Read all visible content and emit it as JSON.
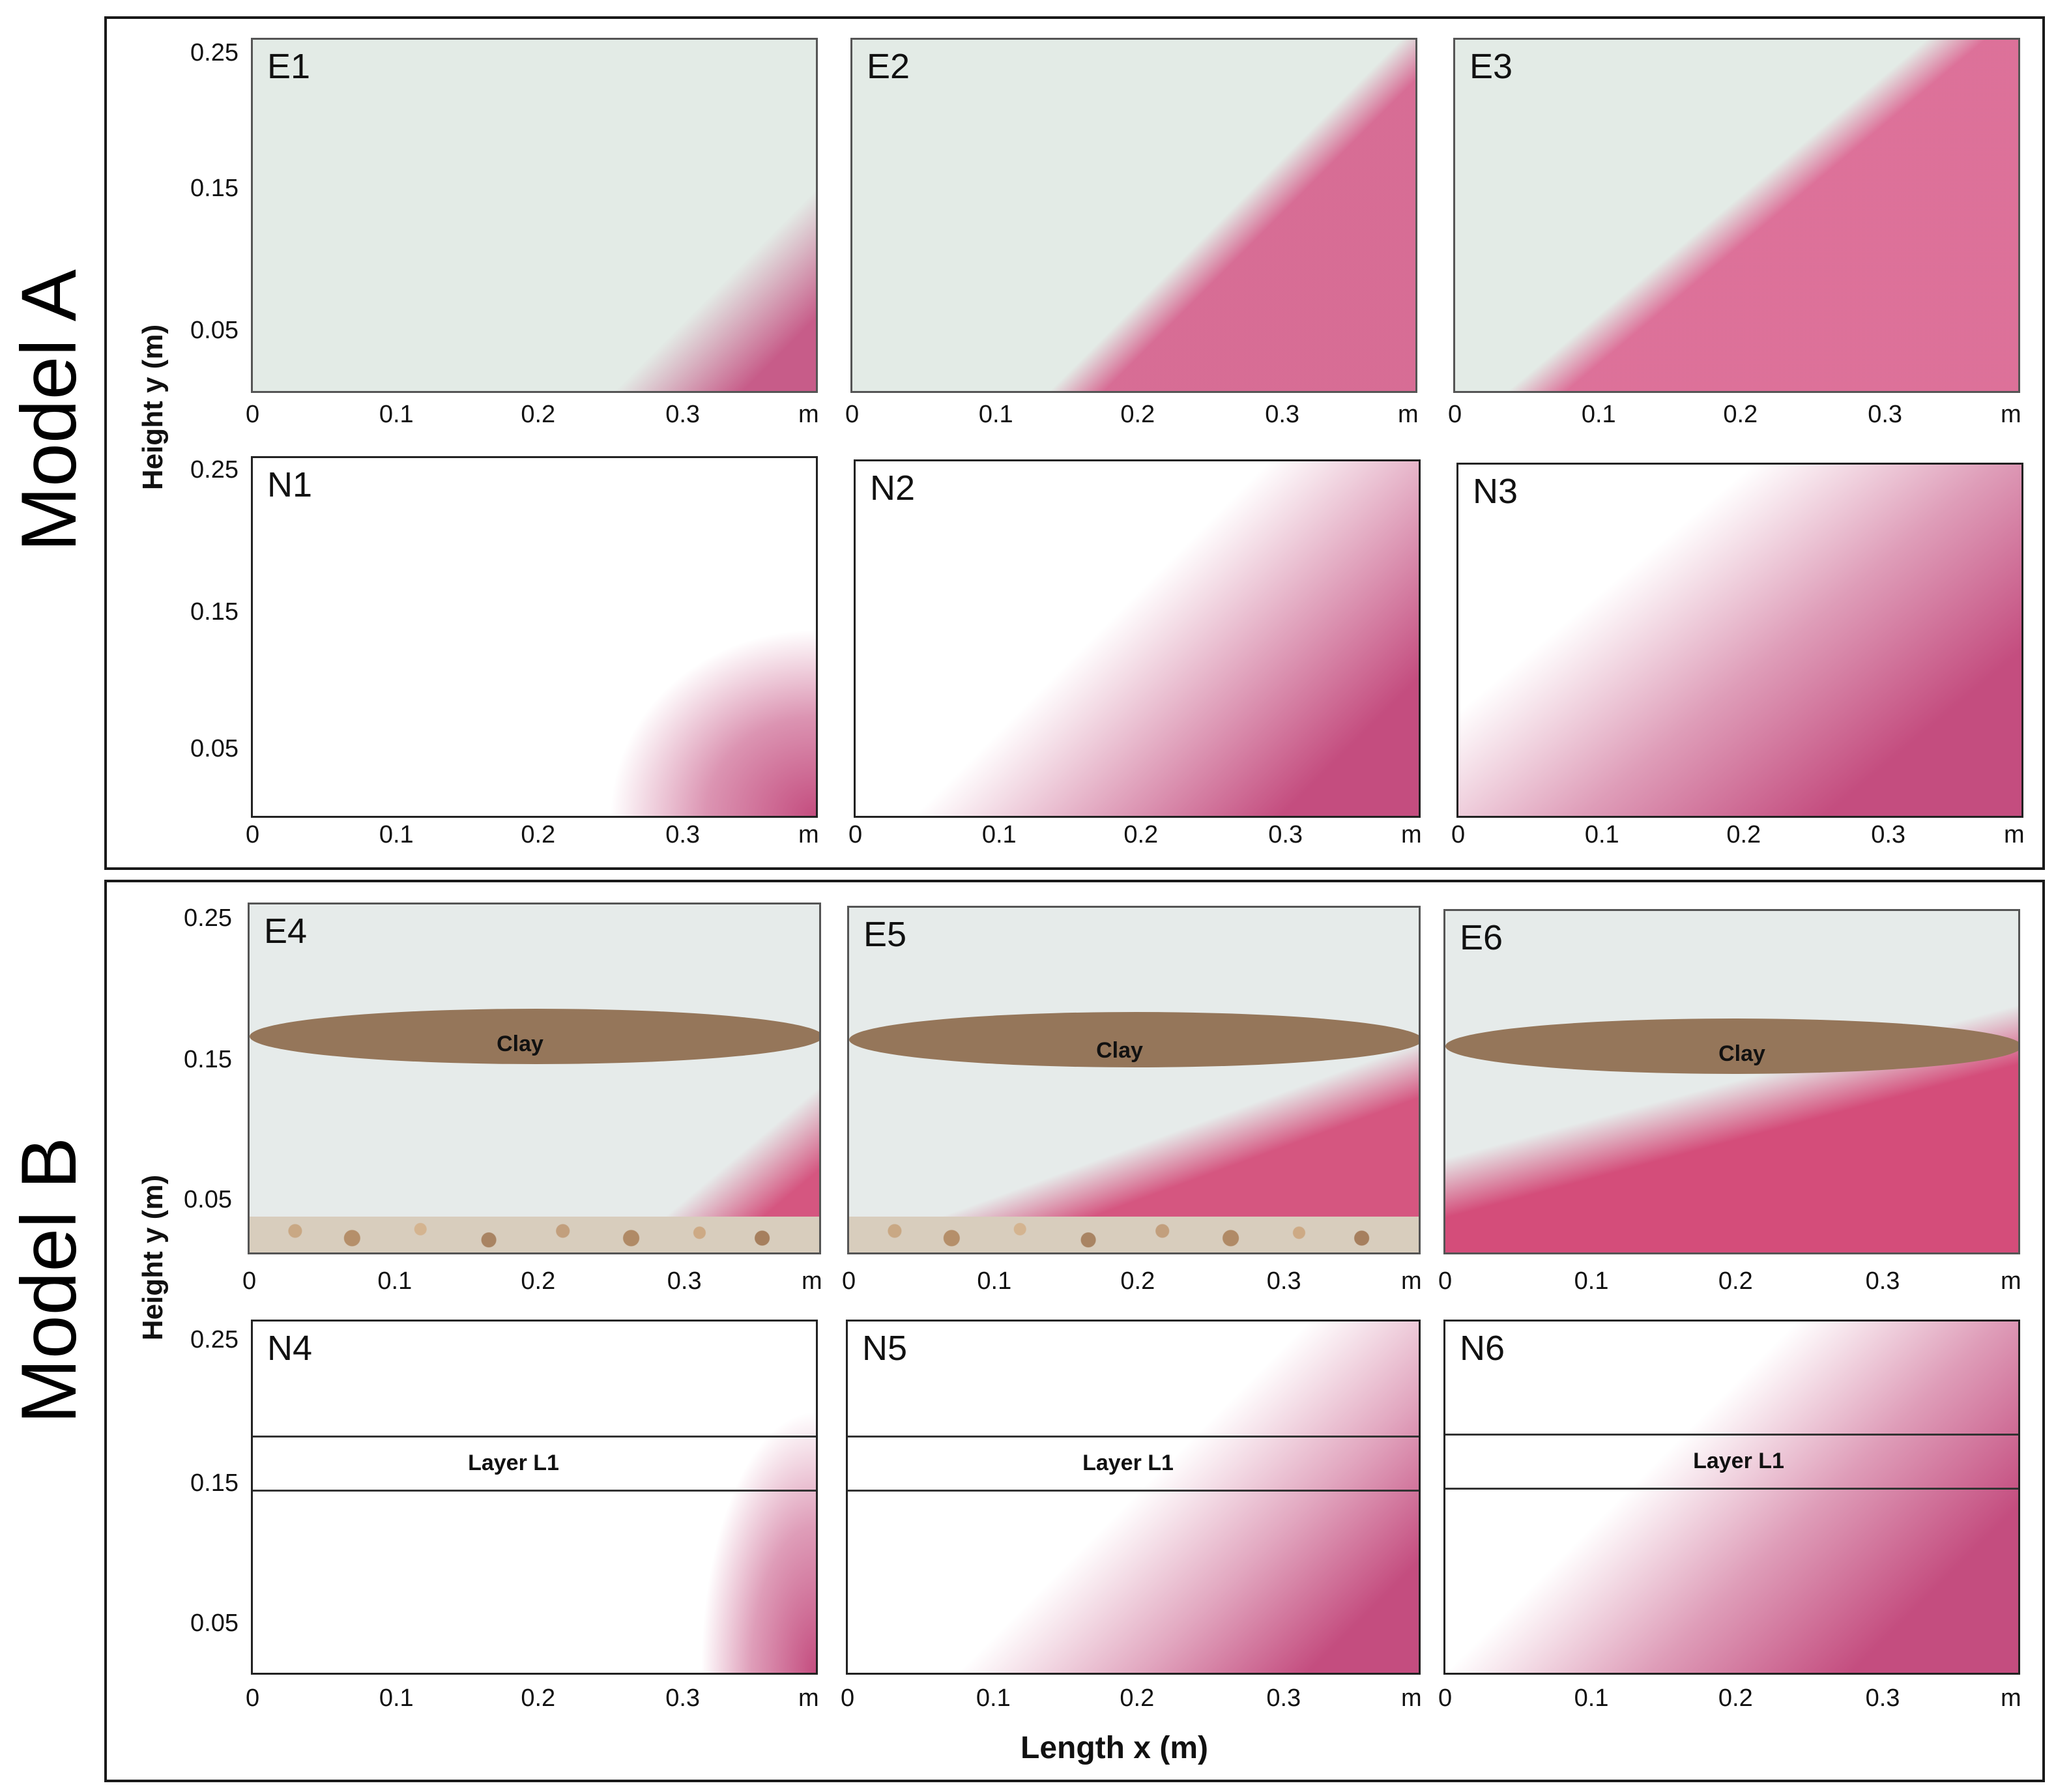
{
  "models": {
    "a": {
      "label": "Model A"
    },
    "b": {
      "label": "Model B"
    }
  },
  "axes": {
    "y_title": "Height y (m)",
    "x_title": "Length x (m)",
    "y_ticks": [
      "0.25",
      "0.15",
      "0.05"
    ],
    "x_ticks": [
      "0",
      "0.1",
      "0.2",
      "0.3",
      "m"
    ]
  },
  "panels": {
    "e1": {
      "id": "E1"
    },
    "e2": {
      "id": "E2"
    },
    "e3": {
      "id": "E3"
    },
    "n1": {
      "id": "N1"
    },
    "n2": {
      "id": "N2"
    },
    "n3": {
      "id": "N3"
    },
    "e4": {
      "id": "E4",
      "clay": "Clay"
    },
    "e5": {
      "id": "E5",
      "clay": "Clay"
    },
    "e6": {
      "id": "E6",
      "clay": "Clay"
    },
    "n4": {
      "id": "N4",
      "layer": "Layer L1"
    },
    "n5": {
      "id": "N5",
      "layer": "Layer L1"
    },
    "n6": {
      "id": "N6",
      "layer": "Layer L1"
    }
  },
  "colors": {
    "frame": "#1a1a1a",
    "sand": "#e3ebe6",
    "tracer": "#c44d7f",
    "clay": "#95765a"
  }
}
